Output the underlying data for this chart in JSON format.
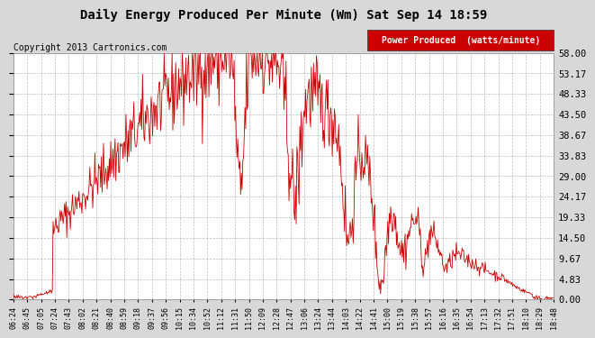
{
  "title": "Daily Energy Produced Per Minute (Wm) Sat Sep 14 18:59",
  "copyright": "Copyright 2013 Cartronics.com",
  "legend_label": "Power Produced  (watts/minute)",
  "legend_bg": "#cc0000",
  "legend_fg": "#ffffff",
  "line_color": "#cc0000",
  "figure_bg": "#d8d8d8",
  "plot_bg": "#ffffff",
  "grid_color": "#aaaaaa",
  "yticks": [
    0.0,
    4.83,
    9.67,
    14.5,
    19.33,
    24.17,
    29.0,
    33.83,
    38.67,
    43.5,
    48.33,
    53.17,
    58.0
  ],
  "ymax": 58.0,
  "ymin": 0.0,
  "xtick_labels": [
    "06:24",
    "06:45",
    "07:05",
    "07:24",
    "07:43",
    "08:02",
    "08:21",
    "08:40",
    "08:59",
    "09:18",
    "09:37",
    "09:56",
    "10:15",
    "10:34",
    "10:52",
    "11:12",
    "11:31",
    "11:50",
    "12:09",
    "12:28",
    "12:47",
    "13:06",
    "13:24",
    "13:44",
    "14:03",
    "14:22",
    "14:41",
    "15:00",
    "15:19",
    "15:38",
    "15:57",
    "16:16",
    "16:35",
    "16:54",
    "17:13",
    "17:32",
    "17:51",
    "18:10",
    "18:29",
    "18:48"
  ]
}
